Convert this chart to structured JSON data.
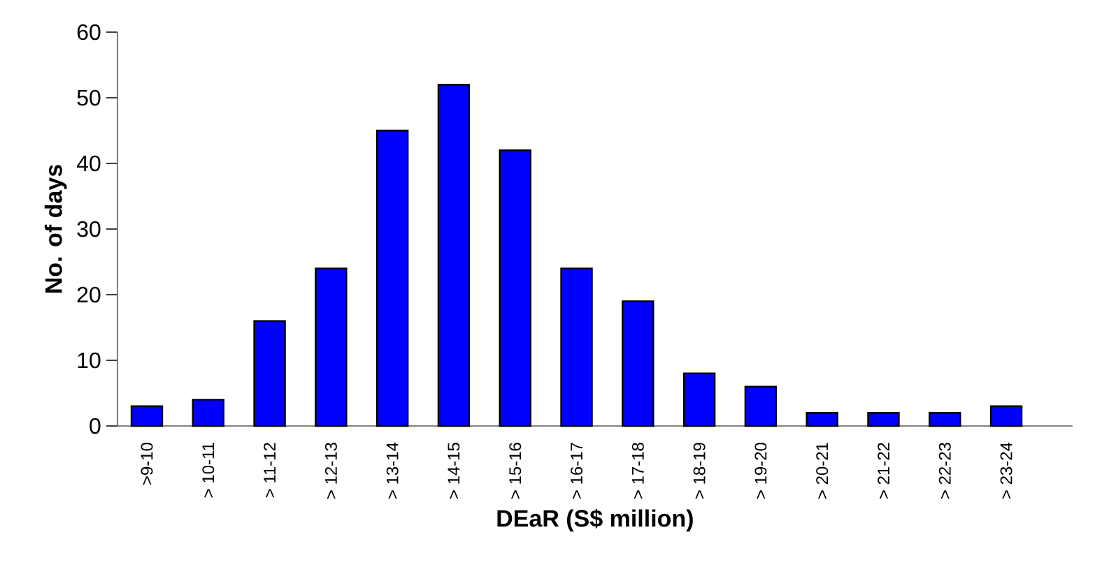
{
  "chart_data": {
    "type": "bar",
    "xlabel": "DEaR (S$ million)",
    "ylabel": "No. of days",
    "categories": [
      ">9-10",
      "> 10-11",
      "> 11-12",
      "> 12-13",
      "> 13-14",
      "> 14-15",
      "> 15-16",
      "> 16-17",
      "> 17-18",
      "> 18-19",
      "> 19-20",
      "> 20-21",
      "> 21-22",
      "> 22-23",
      "> 23-24"
    ],
    "values": [
      3,
      4,
      16,
      24,
      45,
      52,
      42,
      24,
      19,
      8,
      6,
      2,
      2,
      2,
      3
    ],
    "color": "#0000ff",
    "ylim": [
      0,
      60
    ],
    "yticks": [
      0,
      10,
      20,
      30,
      40,
      50,
      60
    ]
  }
}
